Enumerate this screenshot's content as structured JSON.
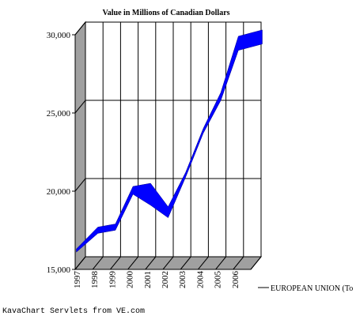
{
  "chart_data": {
    "type": "area",
    "title": "Value in Millions of Canadian Dollars",
    "categories": [
      "1997",
      "1998",
      "1999",
      "2000",
      "2001",
      "2002",
      "2003",
      "2004",
      "2005",
      "2006"
    ],
    "series": [
      {
        "name": "EUROPEAN UNION (To",
        "values": [
          15800,
          17100,
          17300,
          19700,
          19400,
          18300,
          20700,
          23500,
          25600,
          29000
        ],
        "band_upper": [
          15900,
          17300,
          17500,
          19900,
          20100,
          18600,
          20800,
          23600,
          25900,
          29500
        ],
        "band_lower": [
          15700,
          16900,
          17100,
          19400,
          18700,
          17900,
          20500,
          23300,
          25400,
          28600
        ],
        "color": "#0000ff"
      }
    ],
    "ylim": [
      15000,
      30000
    ],
    "yticks": [
      "15,000",
      "20,000",
      "25,000",
      "30,000"
    ],
    "ytick_values": [
      15000,
      20000,
      25000,
      30000
    ],
    "grid": true,
    "legend_position": "right",
    "colors": {
      "wall": "#a0a0a0",
      "floor": "#a0a0a0",
      "plot_bg": "#ffffff",
      "grid": "#000000"
    }
  },
  "footer": "KavaChart Servlets from VE.com"
}
